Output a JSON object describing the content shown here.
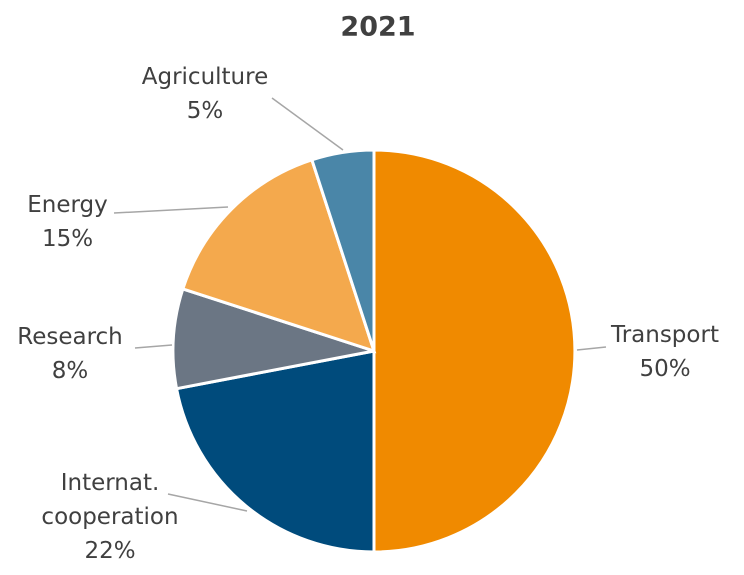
{
  "chart_data": {
    "type": "pie",
    "title": "2021",
    "categories": [
      "Transport",
      "Internat. cooperation",
      "Research",
      "Energy",
      "Agriculture"
    ],
    "values": [
      50,
      22,
      8,
      15,
      5
    ],
    "value_labels": [
      "50%",
      "22%",
      "8%",
      "15%",
      "5%"
    ],
    "colors": [
      "#f08a00",
      "#004b7c",
      "#6b7684",
      "#f4a94d",
      "#4a86a8"
    ]
  }
}
